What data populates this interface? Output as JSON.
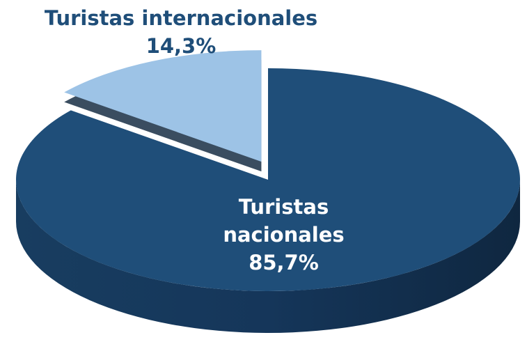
{
  "chart_data": {
    "type": "pie",
    "categories": [
      "Turistas internacionales",
      "Turistas nacionales"
    ],
    "values": [
      14.3,
      85.7
    ],
    "value_labels": [
      "14,3%",
      "85,7%"
    ],
    "colors": [
      "#9dc3e6",
      "#1f4e79"
    ]
  }
}
